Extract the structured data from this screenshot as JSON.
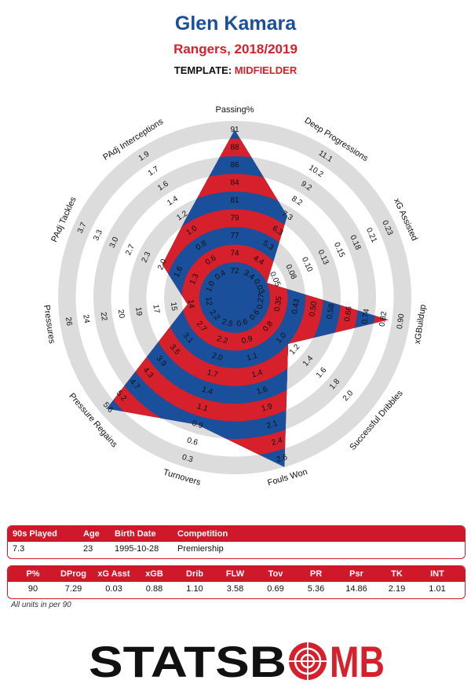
{
  "header": {
    "player": "Glen Kamara",
    "team_season": "Rangers, 2018/2019",
    "template_label": "TEMPLATE:",
    "template_value": "MIDFIELDER"
  },
  "colors": {
    "blue": "#1a4f9c",
    "red": "#d6202b",
    "ring": "#dcdcdc"
  },
  "chart_data": {
    "type": "radar",
    "rings": 10,
    "metrics": [
      {
        "name": "Passing%",
        "value": 90,
        "scale": [
          "72",
          "74",
          "77",
          "79",
          "81",
          "84",
          "86",
          "88",
          "91"
        ]
      },
      {
        "name": "Deep Progressions",
        "value": 7.29,
        "scale": [
          "3.4",
          "4.4",
          "5.3",
          "6.3",
          "7.3",
          "8.2",
          "9.2",
          "10.2",
          "11.1"
        ]
      },
      {
        "name": "xG Assisted",
        "value": 0.03,
        "scale": [
          "0.03",
          "0.05",
          "0.08",
          "0.10",
          "0.13",
          "0.15",
          "0.18",
          "0.21",
          "0.23"
        ]
      },
      {
        "name": "xGBuildup",
        "value": 0.88,
        "scale": [
          "0.27",
          "0.35",
          "0.43",
          "0.50",
          "0.58",
          "0.66",
          "0.74",
          "0.82",
          "0.90"
        ]
      },
      {
        "name": "Successful Dribbles",
        "value": 1.1,
        "scale": [
          "0.6",
          "0.8",
          "1.0",
          "1.2",
          "1.4",
          "1.6",
          "1.8",
          "2.0"
        ]
      },
      {
        "name": "Fouls Won",
        "value": 3.58,
        "scale": [
          "0.6",
          "0.9",
          "1.1",
          "1.4",
          "1.6",
          "1.9",
          "2.1",
          "2.4",
          "2.6"
        ]
      },
      {
        "name": "Turnovers",
        "value": 0.69,
        "scale": [
          "2.5",
          "2.2",
          "2.0",
          "1.7",
          "1.4",
          "1.1",
          "0.9",
          "0.6",
          "0.3"
        ]
      },
      {
        "name": "Pressure Regains",
        "value": 5.36,
        "scale": [
          "2.2",
          "2.7",
          "3.1",
          "3.5",
          "3.9",
          "4.3",
          "4.7",
          "5.2",
          "5.6"
        ]
      },
      {
        "name": "Pressures",
        "value": 14.86,
        "scale": [
          "12",
          "14",
          "15",
          "17",
          "19",
          "20",
          "22",
          "24",
          "26"
        ]
      },
      {
        "name": "PAdj Tackles",
        "value": 2.19,
        "scale": [
          "1.0",
          "1.3",
          "1.6",
          "2.0",
          "2.3",
          "2.7",
          "3.0",
          "3.3",
          "3.7"
        ]
      },
      {
        "name": "PAdj Interceptions",
        "value": 1.01,
        "scale": [
          "0.4",
          "0.6",
          "0.8",
          "1.0",
          "1.2",
          "1.4",
          "1.6",
          "1.7",
          "1.9"
        ]
      }
    ],
    "polygon_rings": [
      9.5,
      5.5,
      2.0,
      8.8,
      4.0,
      10.0,
      7.5,
      9.6,
      2.7,
      4.5,
      5.2
    ]
  },
  "info_table": {
    "headers": [
      "90s Played",
      "Age",
      "Birth Date",
      "Competition"
    ],
    "values": [
      "7.3",
      "23",
      "1995-10-28",
      "Premiership"
    ]
  },
  "stats_table": {
    "headers": [
      "P%",
      "DProg",
      "xG Asst",
      "xGB",
      "Drib",
      "FLW",
      "Tov",
      "PR",
      "Psr",
      "TK",
      "INT"
    ],
    "values": [
      "90",
      "7.29",
      "0.03",
      "0.88",
      "1.10",
      "3.58",
      "0.69",
      "5.36",
      "14.86",
      "2.19",
      "1.01"
    ]
  },
  "footnote": "All units in per 90",
  "logo": {
    "part1": "STATSB",
    "part2": "MB"
  }
}
